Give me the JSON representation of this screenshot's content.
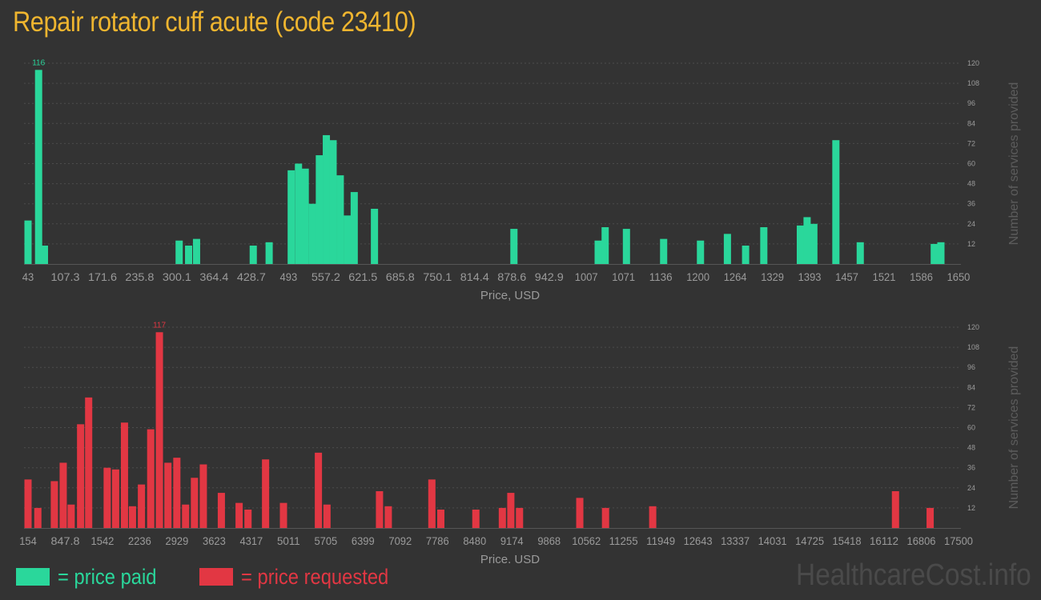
{
  "title": "Repair rotator cuff acute (code 23410)",
  "colors": {
    "background": "#333333",
    "paid": "#2ad79b",
    "requested": "#e23743",
    "title": "#efb52f",
    "axis_text": "#9a9a9a",
    "grid": "#4c4c4c"
  },
  "legend": {
    "paid": "= price paid",
    "requested": "= price requested"
  },
  "watermark": "HealthcareCost.info",
  "chart_data": [
    {
      "type": "bar",
      "name": "price paid",
      "xlabel": "Price, USD",
      "ylabel": "Number of services provided",
      "ylim": [
        0,
        120
      ],
      "yticks": [
        12,
        24,
        36,
        48,
        60,
        72,
        84,
        96,
        108,
        120
      ],
      "xlim": [
        43,
        1650
      ],
      "xticks": [
        "43",
        "107.3",
        "171.6",
        "235.8",
        "300.1",
        "364.4",
        "428.7",
        "493",
        "557.2",
        "621.5",
        "685.8",
        "750.1",
        "814.4",
        "878.6",
        "942.9",
        "1007",
        "1071",
        "1136",
        "1200",
        "1264",
        "1329",
        "1393",
        "1457",
        "1521",
        "1586",
        "1650"
      ],
      "peak_label": "116",
      "bars": [
        {
          "x": 43,
          "value": 26
        },
        {
          "x": 61.5,
          "value": 116
        },
        {
          "x": 71.7,
          "value": 11
        },
        {
          "x": 307.2,
          "value": 14
        },
        {
          "x": 323.7,
          "value": 11
        },
        {
          "x": 337.6,
          "value": 15
        },
        {
          "x": 436.7,
          "value": 11
        },
        {
          "x": 464.5,
          "value": 13
        },
        {
          "x": 503.1,
          "value": 56
        },
        {
          "x": 515.8,
          "value": 60
        },
        {
          "x": 527.6,
          "value": 57
        },
        {
          "x": 540.1,
          "value": 36
        },
        {
          "x": 552.3,
          "value": 65
        },
        {
          "x": 564.5,
          "value": 77
        },
        {
          "x": 576.3,
          "value": 74
        },
        {
          "x": 588.8,
          "value": 53
        },
        {
          "x": 601.1,
          "value": 29
        },
        {
          "x": 613.2,
          "value": 43
        },
        {
          "x": 648.6,
          "value": 33
        },
        {
          "x": 892.4,
          "value": 21
        },
        {
          "x": 1039.7,
          "value": 14
        },
        {
          "x": 1051.9,
          "value": 22
        },
        {
          "x": 1089.1,
          "value": 21
        },
        {
          "x": 1154.1,
          "value": 15
        },
        {
          "x": 1218.5,
          "value": 14
        },
        {
          "x": 1265.6,
          "value": 18
        },
        {
          "x": 1297.4,
          "value": 11
        },
        {
          "x": 1329.2,
          "value": 22
        },
        {
          "x": 1393.1,
          "value": 23
        },
        {
          "x": 1404.9,
          "value": 28
        },
        {
          "x": 1416.7,
          "value": 24
        },
        {
          "x": 1455.2,
          "value": 74
        },
        {
          "x": 1497.8,
          "value": 13
        },
        {
          "x": 1627.2,
          "value": 12
        },
        {
          "x": 1638.8,
          "value": 13
        }
      ]
    },
    {
      "type": "bar",
      "name": "price requested",
      "xlabel": "Price, USD",
      "ylabel": "Number of services provided",
      "ylim": [
        0,
        120
      ],
      "yticks": [
        12,
        24,
        36,
        48,
        60,
        72,
        84,
        96,
        108,
        120
      ],
      "xlim": [
        154,
        17500
      ],
      "xticks": [
        "154",
        "847.8",
        "1542",
        "2236",
        "2929",
        "3623",
        "4317",
        "5011",
        "5705",
        "6399",
        "7092",
        "7786",
        "8480",
        "9174",
        "9868",
        "10562",
        "11255",
        "11949",
        "12643",
        "13337",
        "14031",
        "14725",
        "15418",
        "16112",
        "16806",
        "17500"
      ],
      "peak_label": "117",
      "bars": [
        {
          "x": 154,
          "value": 29
        },
        {
          "x": 339,
          "value": 12
        },
        {
          "x": 651,
          "value": 28
        },
        {
          "x": 818,
          "value": 39
        },
        {
          "x": 968,
          "value": 14
        },
        {
          "x": 1146,
          "value": 62
        },
        {
          "x": 1298,
          "value": 78
        },
        {
          "x": 1648,
          "value": 36
        },
        {
          "x": 1807,
          "value": 35
        },
        {
          "x": 1974,
          "value": 63
        },
        {
          "x": 2125,
          "value": 13
        },
        {
          "x": 2294,
          "value": 26
        },
        {
          "x": 2469,
          "value": 59
        },
        {
          "x": 2633,
          "value": 117
        },
        {
          "x": 2794,
          "value": 39
        },
        {
          "x": 2962,
          "value": 42
        },
        {
          "x": 3127,
          "value": 14
        },
        {
          "x": 3294,
          "value": 30
        },
        {
          "x": 3462,
          "value": 38
        },
        {
          "x": 3802,
          "value": 21
        },
        {
          "x": 4137,
          "value": 15
        },
        {
          "x": 4305,
          "value": 11
        },
        {
          "x": 4636,
          "value": 41
        },
        {
          "x": 4974,
          "value": 15
        },
        {
          "x": 5633,
          "value": 45
        },
        {
          "x": 5795,
          "value": 14
        },
        {
          "x": 6786,
          "value": 22
        },
        {
          "x": 6952,
          "value": 13
        },
        {
          "x": 7774,
          "value": 29
        },
        {
          "x": 7943,
          "value": 11
        },
        {
          "x": 8604,
          "value": 11
        },
        {
          "x": 9104,
          "value": 12
        },
        {
          "x": 9264,
          "value": 21
        },
        {
          "x": 9428,
          "value": 12
        },
        {
          "x": 10565,
          "value": 18
        },
        {
          "x": 11051,
          "value": 12
        },
        {
          "x": 11941,
          "value": 13
        },
        {
          "x": 16522,
          "value": 22
        },
        {
          "x": 17176,
          "value": 12
        }
      ]
    }
  ]
}
